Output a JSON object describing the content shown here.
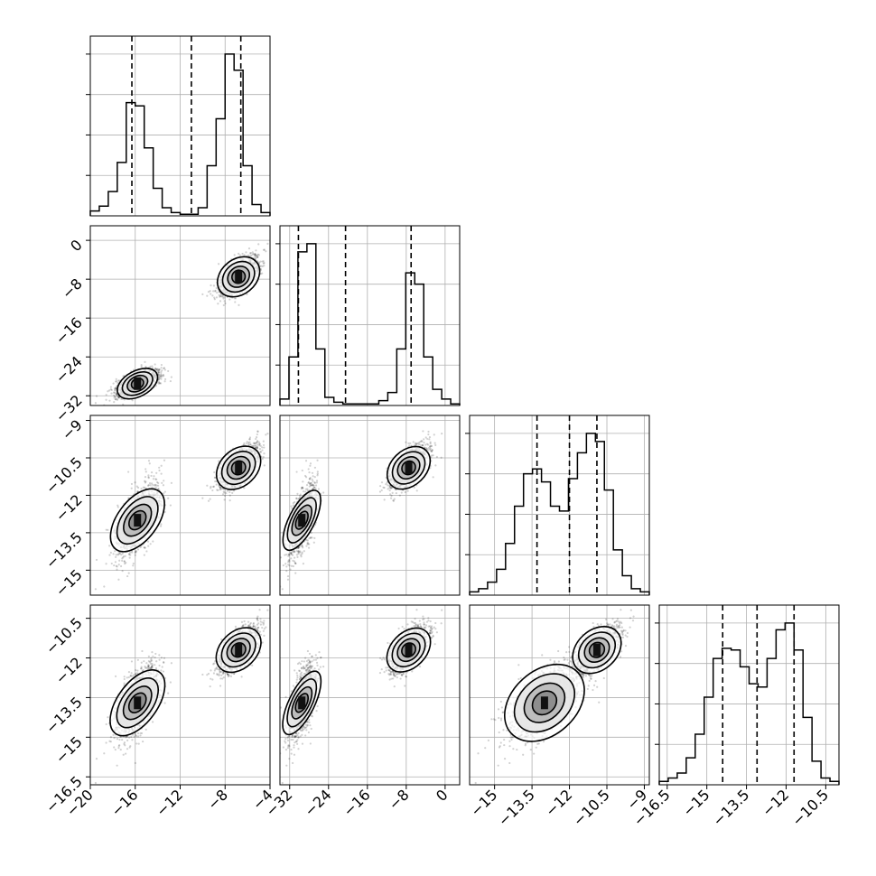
{
  "chart_data": {
    "type": "corner",
    "grid": true,
    "params": [
      {
        "range": [
          -20,
          -4
        ],
        "ticks": [
          -20,
          -16,
          -12,
          -8,
          -4
        ],
        "hist": {
          "edges_start": -20,
          "bin_width": 0.8,
          "counts": [
            0.03,
            0.06,
            0.15,
            0.33,
            0.7,
            0.68,
            0.42,
            0.17,
            0.05,
            0.02,
            0.01,
            0.01,
            0.05,
            0.31,
            0.6,
            1.0,
            0.9,
            0.31,
            0.07,
            0.02
          ]
        },
        "quantiles": [
          -16.3,
          -11.0,
          -6.6
        ]
      },
      {
        "range": [
          -34,
          3
        ],
        "ticks": [
          -32,
          -24,
          -16,
          -8,
          0
        ],
        "hist": {
          "edges_start": -34,
          "bin_width": 1.85,
          "counts": [
            0.04,
            0.3,
            0.95,
            1.0,
            0.35,
            0.05,
            0.02,
            0.01,
            0.01,
            0.01,
            0.01,
            0.03,
            0.08,
            0.35,
            0.82,
            0.75,
            0.3,
            0.1,
            0.04,
            0.01
          ]
        },
        "quantiles": [
          -30.2,
          -20.5,
          -7.0
        ]
      },
      {
        "range": [
          -16.0,
          -8.8
        ],
        "ticks": [
          -15.0,
          -13.5,
          -12.0,
          -10.5,
          -9.0
        ],
        "hist": {
          "edges_start": -16.0,
          "bin_width": 0.36,
          "counts": [
            0.02,
            0.04,
            0.08,
            0.16,
            0.32,
            0.55,
            0.75,
            0.78,
            0.7,
            0.55,
            0.52,
            0.72,
            0.88,
            1.0,
            0.95,
            0.65,
            0.28,
            0.12,
            0.04,
            0.02
          ]
        },
        "quantiles": [
          -13.3,
          -12.0,
          -10.9
        ]
      },
      {
        "range": [
          -16.8,
          -10.0
        ],
        "ticks": [
          -16.5,
          -15.0,
          -13.5,
          -12.0,
          -10.5
        ],
        "hist": {
          "edges_start": -16.8,
          "bin_width": 0.34,
          "counts": [
            0.02,
            0.04,
            0.07,
            0.16,
            0.3,
            0.52,
            0.75,
            0.81,
            0.8,
            0.7,
            0.6,
            0.58,
            0.75,
            0.92,
            0.96,
            0.8,
            0.4,
            0.14,
            0.04,
            0.02
          ]
        },
        "quantiles": [
          -14.4,
          -13.1,
          -11.7
        ]
      }
    ],
    "modes": [
      {
        "weight": 0.5,
        "mean": [
          -15.8,
          -29.5,
          -13.0,
          -13.7
        ],
        "sd": [
          1.0,
          1.4,
          0.75,
          0.75
        ]
      },
      {
        "weight": 0.5,
        "mean": [
          -6.8,
          -7.5,
          -10.9,
          -11.7
        ],
        "sd": [
          0.9,
          2.0,
          0.45,
          0.45
        ]
      }
    ]
  }
}
